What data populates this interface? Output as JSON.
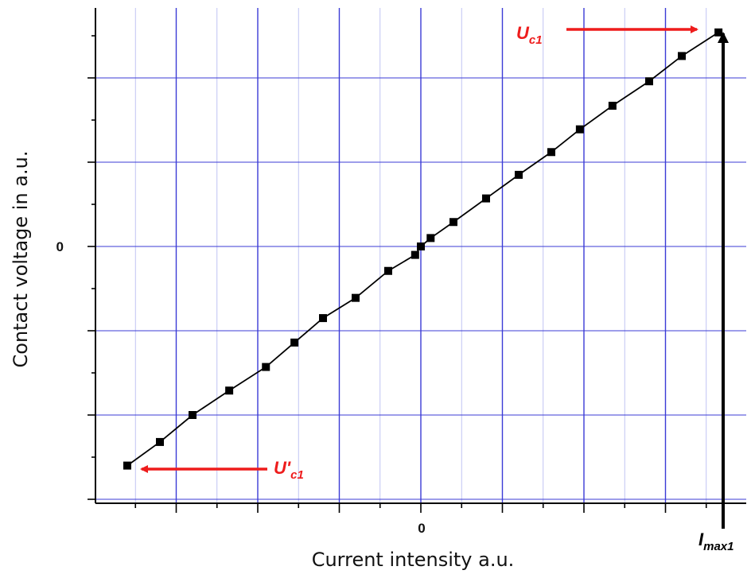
{
  "chart_data": {
    "type": "line",
    "title": "",
    "xlabel": "Current intensity a.u.",
    "ylabel": "Contact voltage in a.u.",
    "x_tick_labels": [
      "0"
    ],
    "y_tick_labels": [
      "0"
    ],
    "xlim": [
      -4,
      4
    ],
    "ylim": [
      -3,
      3
    ],
    "grid": true,
    "series": [
      {
        "marker": "square",
        "color": "#000000",
        "points": [
          {
            "x": -3.6,
            "y": -2.6
          },
          {
            "x": -3.2,
            "y": -2.32
          },
          {
            "x": -2.8,
            "y": -2.0
          },
          {
            "x": -2.35,
            "y": -1.71
          },
          {
            "x": -1.9,
            "y": -1.43
          },
          {
            "x": -1.55,
            "y": -1.14
          },
          {
            "x": -1.2,
            "y": -0.85
          },
          {
            "x": -0.8,
            "y": -0.61
          },
          {
            "x": -0.4,
            "y": -0.29
          },
          {
            "x": -0.07,
            "y": -0.1
          },
          {
            "x": 0.0,
            "y": 0.0
          },
          {
            "x": 0.12,
            "y": 0.1
          },
          {
            "x": 0.4,
            "y": 0.29
          },
          {
            "x": 0.8,
            "y": 0.57
          },
          {
            "x": 1.2,
            "y": 0.85
          },
          {
            "x": 1.6,
            "y": 1.12
          },
          {
            "x": 1.95,
            "y": 1.39
          },
          {
            "x": 2.35,
            "y": 1.67
          },
          {
            "x": 2.8,
            "y": 1.96
          },
          {
            "x": 3.2,
            "y": 2.26
          },
          {
            "x": 3.65,
            "y": 2.54
          }
        ]
      }
    ],
    "annotations": {
      "uc1": {
        "main": "U",
        "sub": "c1",
        "color": "#ee1c1c"
      },
      "uc1_prime": {
        "main": "U'",
        "sub": "c1",
        "color": "#ee1c1c"
      },
      "imax1": {
        "main": "I",
        "sub": "max1",
        "color": "#000000"
      }
    },
    "colors": {
      "grid_major": "#3b3bd6",
      "grid_minor": "#b9bdf2",
      "axis": "#000000",
      "arrow": "#ee1c1c"
    }
  }
}
